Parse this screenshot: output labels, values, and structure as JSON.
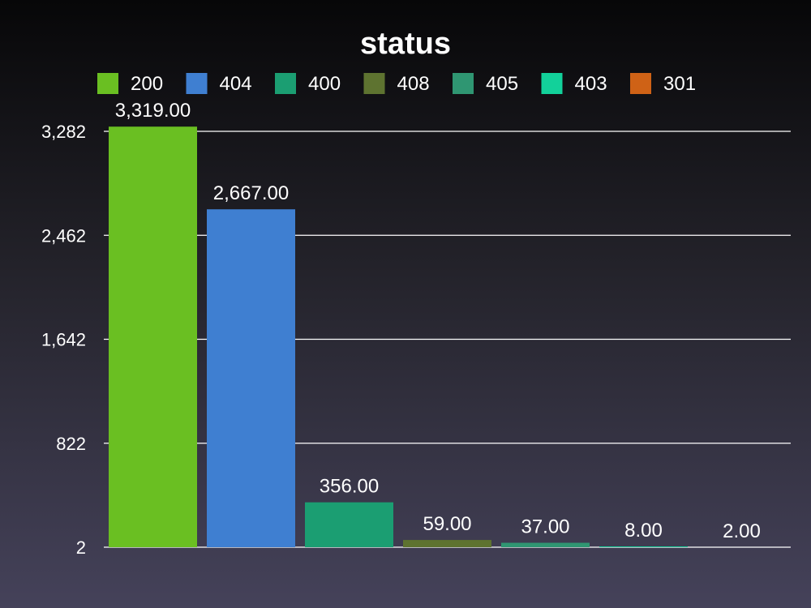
{
  "chart_data": {
    "type": "bar",
    "title": "status",
    "xlabel": "",
    "ylabel": "",
    "categories": [
      "200",
      "404",
      "400",
      "408",
      "405",
      "403",
      "301"
    ],
    "values": [
      3319,
      2667,
      356,
      59,
      37,
      8,
      2
    ],
    "value_labels": [
      "3,319.00",
      "2,667.00",
      "356.00",
      "59.00",
      "37.00",
      "8.00",
      "2.00"
    ],
    "colors": [
      "#6abf22",
      "#3f7fd1",
      "#1b9e72",
      "#5e7330",
      "#2f9672",
      "#12d19a",
      "#cf6216"
    ],
    "yticks": [
      2,
      822,
      1642,
      2462,
      3282
    ],
    "ytick_labels": [
      "2",
      "822",
      "1,642",
      "2,462",
      "3,282"
    ],
    "ylim": [
      2,
      3282
    ],
    "grid": true,
    "legend": "top"
  }
}
